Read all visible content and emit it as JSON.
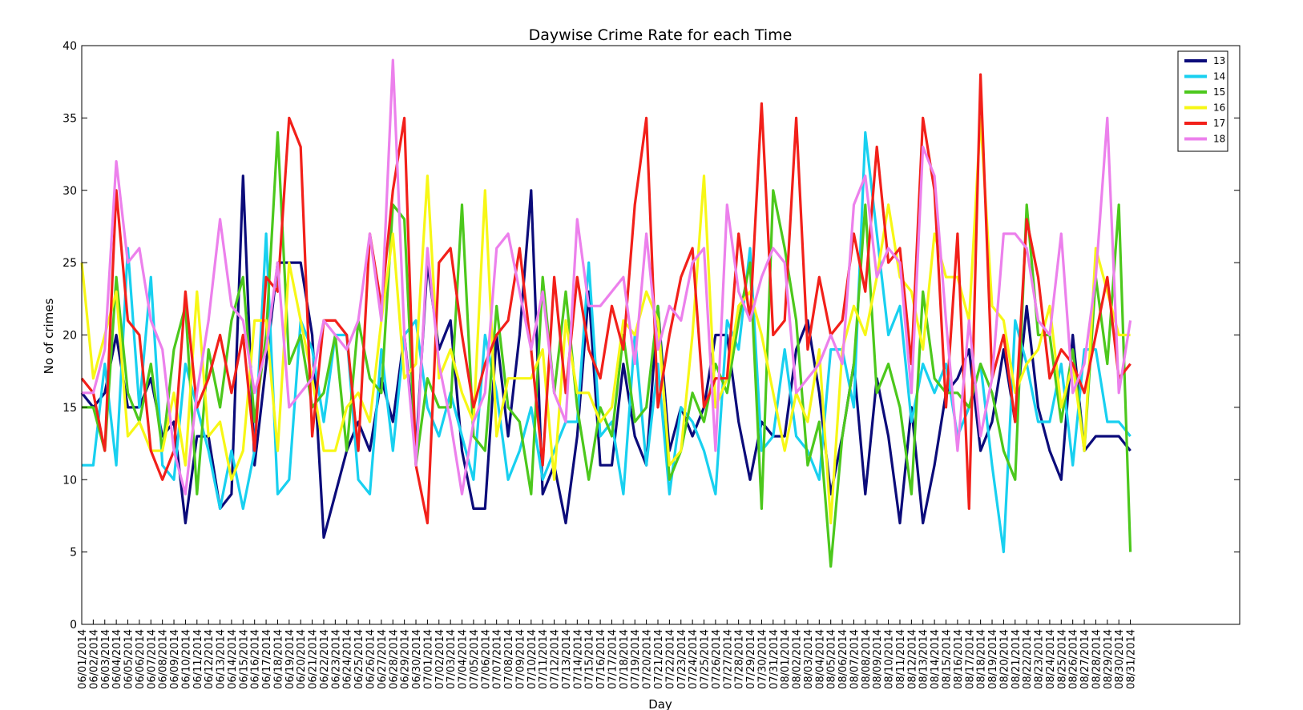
{
  "chart_data": {
    "type": "line",
    "title": "Daywise Crime Rate for each Time",
    "xlabel": "Day",
    "ylabel": "No of crimes",
    "ylim": [
      0,
      40
    ],
    "yticks": [
      "0",
      "5",
      "10",
      "15",
      "20",
      "25",
      "30",
      "35",
      "40"
    ],
    "grid": false,
    "legend_position": "top-right",
    "categories": [
      "06/01/2014",
      "06/02/2014",
      "06/03/2014",
      "06/04/2014",
      "06/05/2014",
      "06/06/2014",
      "06/07/2014",
      "06/08/2014",
      "06/09/2014",
      "06/10/2014",
      "06/11/2014",
      "06/12/2014",
      "06/13/2014",
      "06/14/2014",
      "06/15/2014",
      "06/16/2014",
      "06/17/2014",
      "06/18/2014",
      "06/19/2014",
      "06/20/2014",
      "06/21/2014",
      "06/22/2014",
      "06/23/2014",
      "06/24/2014",
      "06/25/2014",
      "06/26/2014",
      "06/27/2014",
      "06/28/2014",
      "06/29/2014",
      "06/30/2014",
      "07/01/2014",
      "07/02/2014",
      "07/03/2014",
      "07/04/2014",
      "07/05/2014",
      "07/06/2014",
      "07/07/2014",
      "07/08/2014",
      "07/09/2014",
      "07/10/2014",
      "07/11/2014",
      "07/12/2014",
      "07/13/2014",
      "07/14/2014",
      "07/15/2014",
      "07/16/2014",
      "07/17/2014",
      "07/18/2014",
      "07/19/2014",
      "07/20/2014",
      "07/21/2014",
      "07/22/2014",
      "07/23/2014",
      "07/24/2014",
      "07/25/2014",
      "07/26/2014",
      "07/27/2014",
      "07/28/2014",
      "07/29/2014",
      "07/30/2014",
      "07/31/2014",
      "08/01/2014",
      "08/02/2014",
      "08/03/2014",
      "08/04/2014",
      "08/05/2014",
      "08/06/2014",
      "08/07/2014",
      "08/08/2014",
      "08/09/2014",
      "08/10/2014",
      "08/11/2014",
      "08/12/2014",
      "08/13/2014",
      "08/14/2014",
      "08/15/2014",
      "08/16/2014",
      "08/17/2014",
      "08/18/2014",
      "08/19/2014",
      "08/20/2014",
      "08/21/2014",
      "08/22/2014",
      "08/23/2014",
      "08/24/2014",
      "08/25/2014",
      "08/26/2014",
      "08/27/2014",
      "08/28/2014",
      "08/29/2014",
      "08/30/2014",
      "08/31/2014"
    ],
    "series": [
      {
        "name": "13",
        "color": "#0b0b7a",
        "values": [
          16,
          15,
          16,
          20,
          15,
          15,
          17,
          13,
          14,
          7,
          13,
          13,
          8,
          9,
          31,
          11,
          18,
          25,
          25,
          25,
          20,
          6,
          9,
          12,
          14,
          12,
          17,
          14,
          20,
          12,
          25,
          19,
          21,
          12,
          8,
          8,
          20,
          13,
          20,
          30,
          9,
          11,
          7,
          13,
          23,
          11,
          11,
          18,
          13,
          11,
          22,
          12,
          15,
          13,
          15,
          20,
          20,
          14,
          10,
          14,
          13,
          13,
          19,
          21,
          16,
          9,
          13,
          18,
          9,
          17,
          13,
          7,
          15,
          7,
          11,
          16,
          17,
          19,
          12,
          14,
          19,
          14,
          22,
          15,
          12,
          10,
          20,
          12,
          13,
          13,
          13,
          12
        ]
      },
      {
        "name": "14",
        "color": "#18d0f0",
        "values": [
          11,
          11,
          18,
          11,
          26,
          15,
          24,
          11,
          10,
          18,
          15,
          12,
          8,
          12,
          8,
          12,
          27,
          9,
          10,
          21,
          19,
          14,
          20,
          20,
          10,
          9,
          19,
          12,
          20,
          21,
          15,
          13,
          16,
          13,
          10,
          20,
          16,
          10,
          12,
          15,
          10,
          12,
          14,
          14,
          25,
          13,
          14,
          9,
          20,
          11,
          18,
          9,
          15,
          14,
          12,
          9,
          21,
          19,
          26,
          12,
          13,
          19,
          13,
          12,
          10,
          19,
          19,
          15,
          34,
          27,
          20,
          22,
          14,
          18,
          16,
          18,
          13,
          15,
          18,
          11,
          5,
          21,
          18,
          14,
          14,
          18,
          11,
          19,
          19,
          14,
          14,
          13
        ]
      },
      {
        "name": "15",
        "color": "#4cc81c",
        "values": [
          15,
          15,
          12,
          24,
          16,
          14,
          18,
          12,
          19,
          22,
          9,
          19,
          15,
          21,
          24,
          14,
          20,
          34,
          18,
          20,
          15,
          16,
          20,
          12,
          21,
          17,
          16,
          29,
          28,
          11,
          17,
          15,
          15,
          29,
          13,
          12,
          22,
          15,
          14,
          9,
          24,
          16,
          23,
          15,
          10,
          15,
          13,
          20,
          14,
          15,
          22,
          10,
          12,
          16,
          14,
          18,
          16,
          21,
          25,
          8,
          30,
          26,
          21,
          11,
          14,
          4,
          13,
          18,
          29,
          16,
          18,
          15,
          9,
          23,
          17,
          16,
          16,
          15,
          18,
          16,
          12,
          10,
          29,
          20,
          20,
          14,
          19,
          12,
          24,
          18,
          29,
          5
        ]
      },
      {
        "name": "16",
        "color": "#f7f716",
        "values": [
          25,
          17,
          20,
          23,
          13,
          14,
          12,
          12,
          16,
          11,
          23,
          13,
          14,
          10,
          12,
          21,
          21,
          12,
          25,
          21,
          17,
          12,
          12,
          15,
          16,
          14,
          21,
          27,
          17,
          18,
          31,
          17,
          19,
          16,
          14,
          30,
          13,
          17,
          17,
          17,
          19,
          10,
          21,
          16,
          16,
          14,
          15,
          21,
          20,
          23,
          21,
          11,
          12,
          20,
          31,
          15,
          17,
          22,
          23,
          20,
          16,
          12,
          16,
          14,
          19,
          7,
          19,
          22,
          20,
          24,
          29,
          24,
          23,
          19,
          27,
          24,
          24,
          21,
          35,
          22,
          21,
          16,
          18,
          19,
          22,
          15,
          18,
          12,
          26,
          23,
          20,
          20
        ]
      },
      {
        "name": "17",
        "color": "#f2201a",
        "values": [
          17,
          16,
          12,
          30,
          21,
          20,
          12,
          10,
          12,
          23,
          15,
          17,
          20,
          16,
          20,
          12,
          24,
          23,
          35,
          33,
          13,
          21,
          21,
          20,
          12,
          27,
          22,
          30,
          35,
          11,
          7,
          25,
          26,
          20,
          15,
          18,
          20,
          21,
          26,
          19,
          11,
          24,
          16,
          24,
          19,
          17,
          22,
          19,
          29,
          35,
          15,
          20,
          24,
          26,
          15,
          17,
          17,
          27,
          21,
          36,
          20,
          21,
          35,
          19,
          24,
          20,
          21,
          27,
          23,
          33,
          25,
          26,
          18,
          35,
          30,
          15,
          27,
          8,
          38,
          17,
          20,
          14,
          28,
          24,
          17,
          19,
          18,
          16,
          20,
          24,
          17,
          18
        ]
      },
      {
        "name": "18",
        "color": "#ec80ec",
        "values": [
          16,
          16,
          19,
          32,
          25,
          26,
          21,
          19,
          12,
          9,
          16,
          21,
          28,
          22,
          21,
          16,
          19,
          25,
          15,
          16,
          17,
          21,
          20,
          19,
          21,
          27,
          21,
          39,
          20,
          11,
          26,
          18,
          14,
          9,
          14,
          16,
          26,
          27,
          23,
          19,
          23,
          16,
          14,
          28,
          22,
          22,
          23,
          24,
          18,
          27,
          19,
          22,
          21,
          25,
          26,
          12,
          29,
          23,
          21,
          24,
          26,
          25,
          16,
          17,
          18,
          20,
          18,
          29,
          31,
          24,
          26,
          25,
          16,
          33,
          31,
          21,
          12,
          21,
          13,
          17,
          27,
          27,
          26,
          21,
          20,
          27,
          16,
          18,
          24,
          35,
          16,
          21
        ]
      }
    ]
  }
}
